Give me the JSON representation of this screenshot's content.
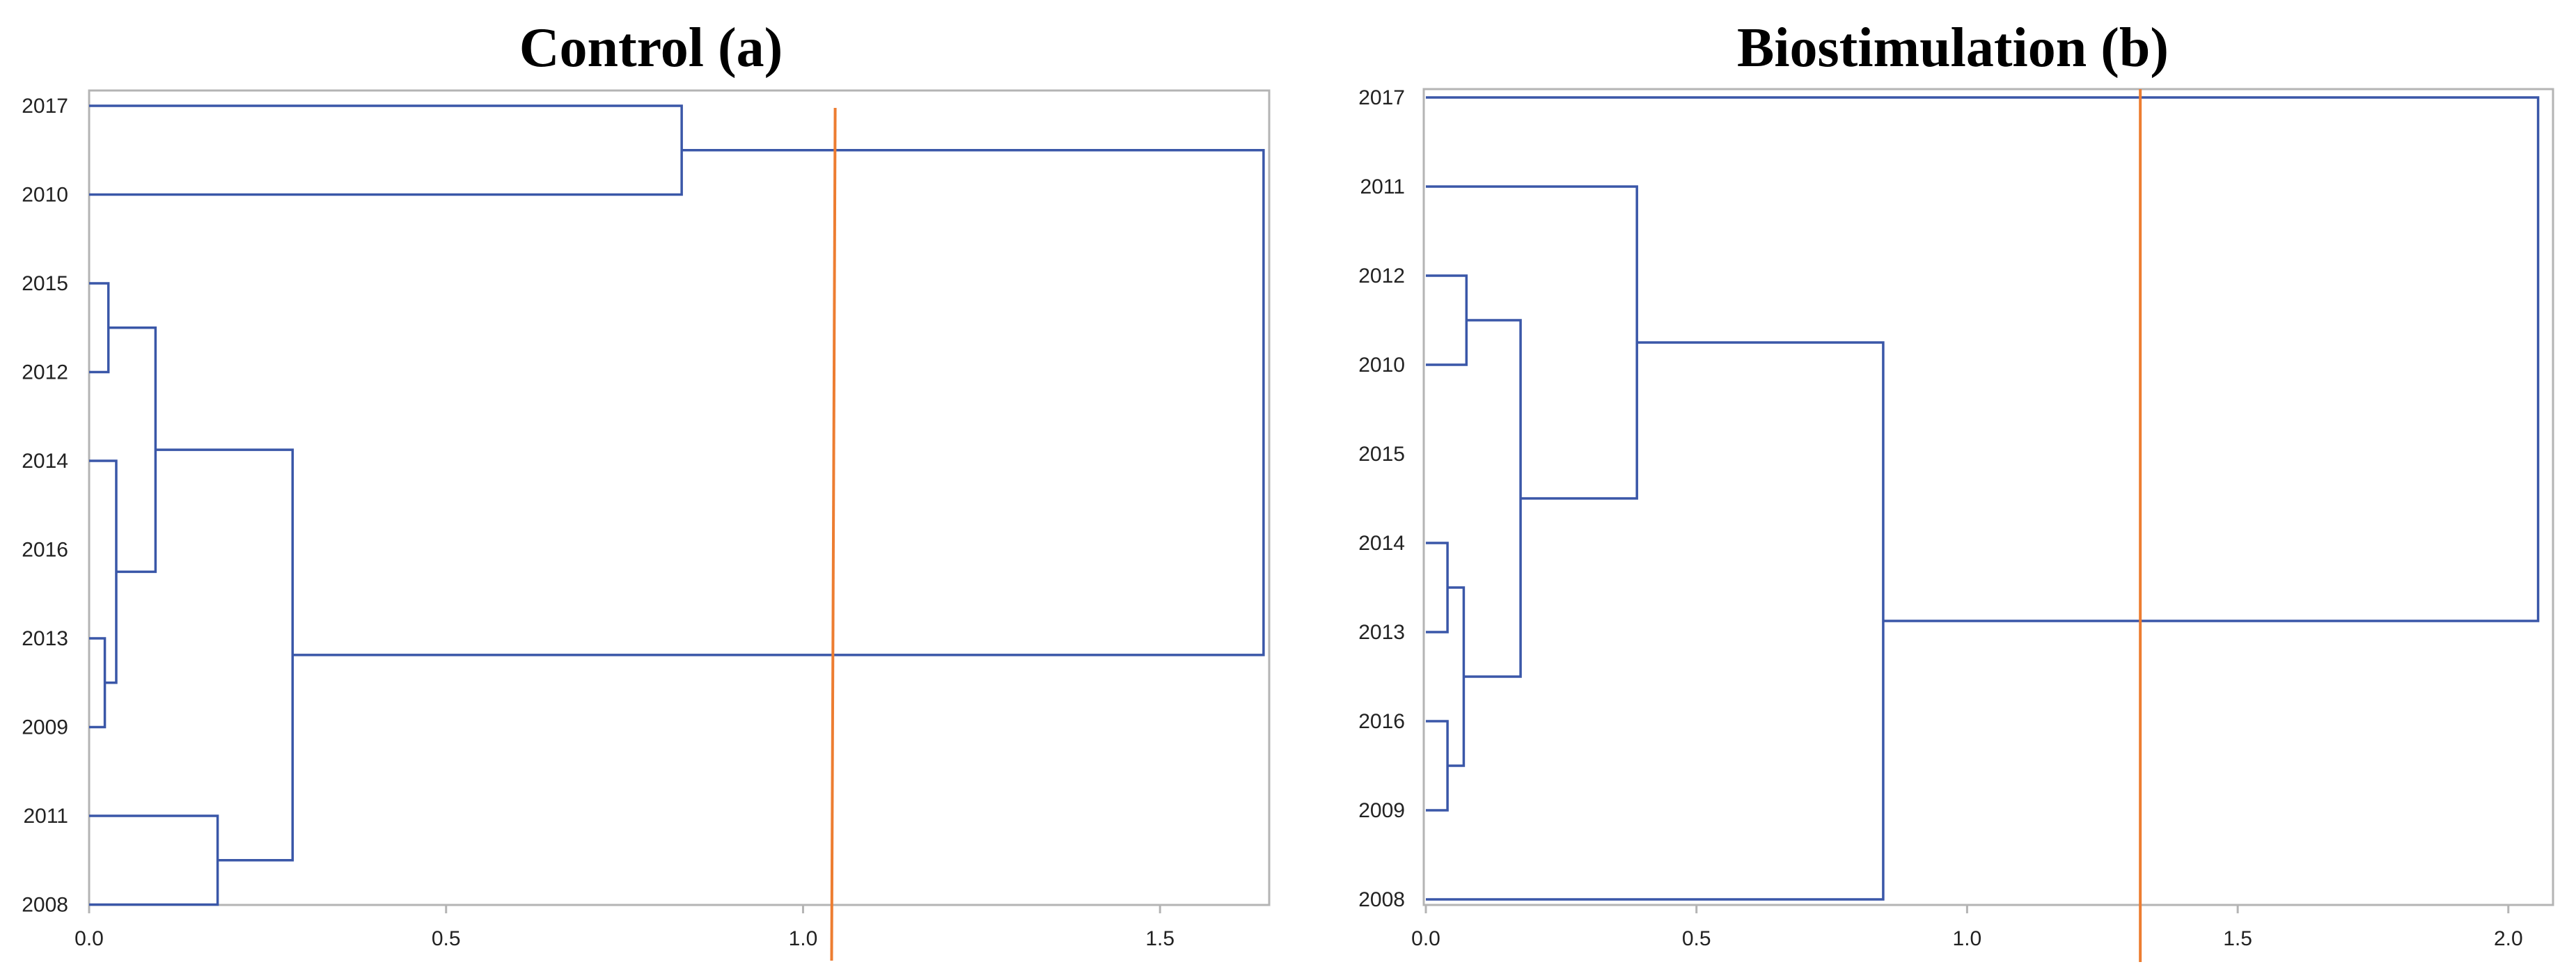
{
  "chart_data": [
    {
      "type": "dendrogram",
      "title": "Control (a)",
      "xlim": [
        0,
        1.65
      ],
      "x_ticks": [
        0.0,
        0.5,
        1.0,
        1.5
      ],
      "x_tick_labels": [
        "0.0",
        "0.5",
        "1.0",
        "1.5"
      ],
      "leaves": [
        "2017",
        "2010",
        "2015",
        "2012",
        "2014",
        "2016",
        "2013",
        "2009",
        "2011",
        "2008"
      ],
      "merges": [
        {
          "left": "2013",
          "right": "2009",
          "height": 0.02
        },
        {
          "left": "2015",
          "right": "2012",
          "height": 0.025
        },
        {
          "left": "2014",
          "right": "2013+2009",
          "height": 0.035
        },
        {
          "left": "2015+2012",
          "right": "2014+2013+2009+2016",
          "height": 0.09
        },
        {
          "left": "2011",
          "right": "2008",
          "height": 0.18
        },
        {
          "left": "2015+2012+2014+2016+2013+2009",
          "right": "2011+2008",
          "height": 0.285
        },
        {
          "left": "2017",
          "right": "2010",
          "height": 0.83
        },
        {
          "left": "2017+2010",
          "right": "rest",
          "height": 1.65
        }
      ],
      "links": [
        {
          "id": "c1",
          "height": 0.022,
          "a": "2013",
          "b": "2009"
        },
        {
          "id": "c2",
          "height": 0.027,
          "a": "2015",
          "b": "2012"
        },
        {
          "id": "c3",
          "height": 0.038,
          "a": "2014",
          "b": "c1"
        },
        {
          "id": "c4",
          "height": 0.093,
          "a": "c2",
          "b": "c3"
        },
        {
          "id": "c5",
          "height": 0.18,
          "a": "2011",
          "b": "2008"
        },
        {
          "id": "c6",
          "height": 0.285,
          "a": "c4",
          "b": "c5"
        },
        {
          "id": "c7",
          "height": 0.83,
          "a": "2017",
          "b": "2010"
        },
        {
          "id": "c8",
          "height": 1.645,
          "a": "c7",
          "b": "c6"
        }
      ],
      "cut_line": {
        "x_bottom": 1.04,
        "x_top": 1.045
      },
      "colors": {
        "branch": "#3a57a8",
        "cut": "#ed7d31",
        "frame": "#b4b4b4"
      }
    },
    {
      "type": "dendrogram",
      "title": "Biostimulation (b)",
      "xlim": [
        0,
        2.08
      ],
      "x_ticks": [
        0.0,
        0.5,
        1.0,
        1.5,
        2.0
      ],
      "x_tick_labels": [
        "0.0",
        "0.5",
        "1.0",
        "1.5",
        "2.0"
      ],
      "leaves": [
        "2017",
        "2011",
        "2012",
        "2010",
        "2015",
        "2014",
        "2013",
        "2016",
        "2009",
        "2008"
      ],
      "links": [
        {
          "id": "b1",
          "height": 0.04,
          "a": "2014",
          "b": "2013"
        },
        {
          "id": "b2",
          "height": 0.04,
          "a": "2016",
          "b": "2009"
        },
        {
          "id": "b3",
          "height": 0.07,
          "a": "b1",
          "b": "b2"
        },
        {
          "id": "b4",
          "height": 0.075,
          "a": "2012",
          "b": "2010"
        },
        {
          "id": "b5",
          "height": 0.175,
          "a": "b4",
          "b": "b3"
        },
        {
          "id": "b6",
          "height": 0.39,
          "a": "2011",
          "b": "b5"
        },
        {
          "id": "b7",
          "height": 0.845,
          "a": "b6",
          "b": "2008"
        },
        {
          "id": "b8",
          "height": 2.055,
          "a": "2017",
          "b": "b7"
        }
      ],
      "cut_line": {
        "x_bottom": 1.32,
        "x_top": 1.32
      },
      "colors": {
        "branch": "#3a57a8",
        "cut": "#ed7d31",
        "frame": "#b4b4b4"
      }
    }
  ]
}
